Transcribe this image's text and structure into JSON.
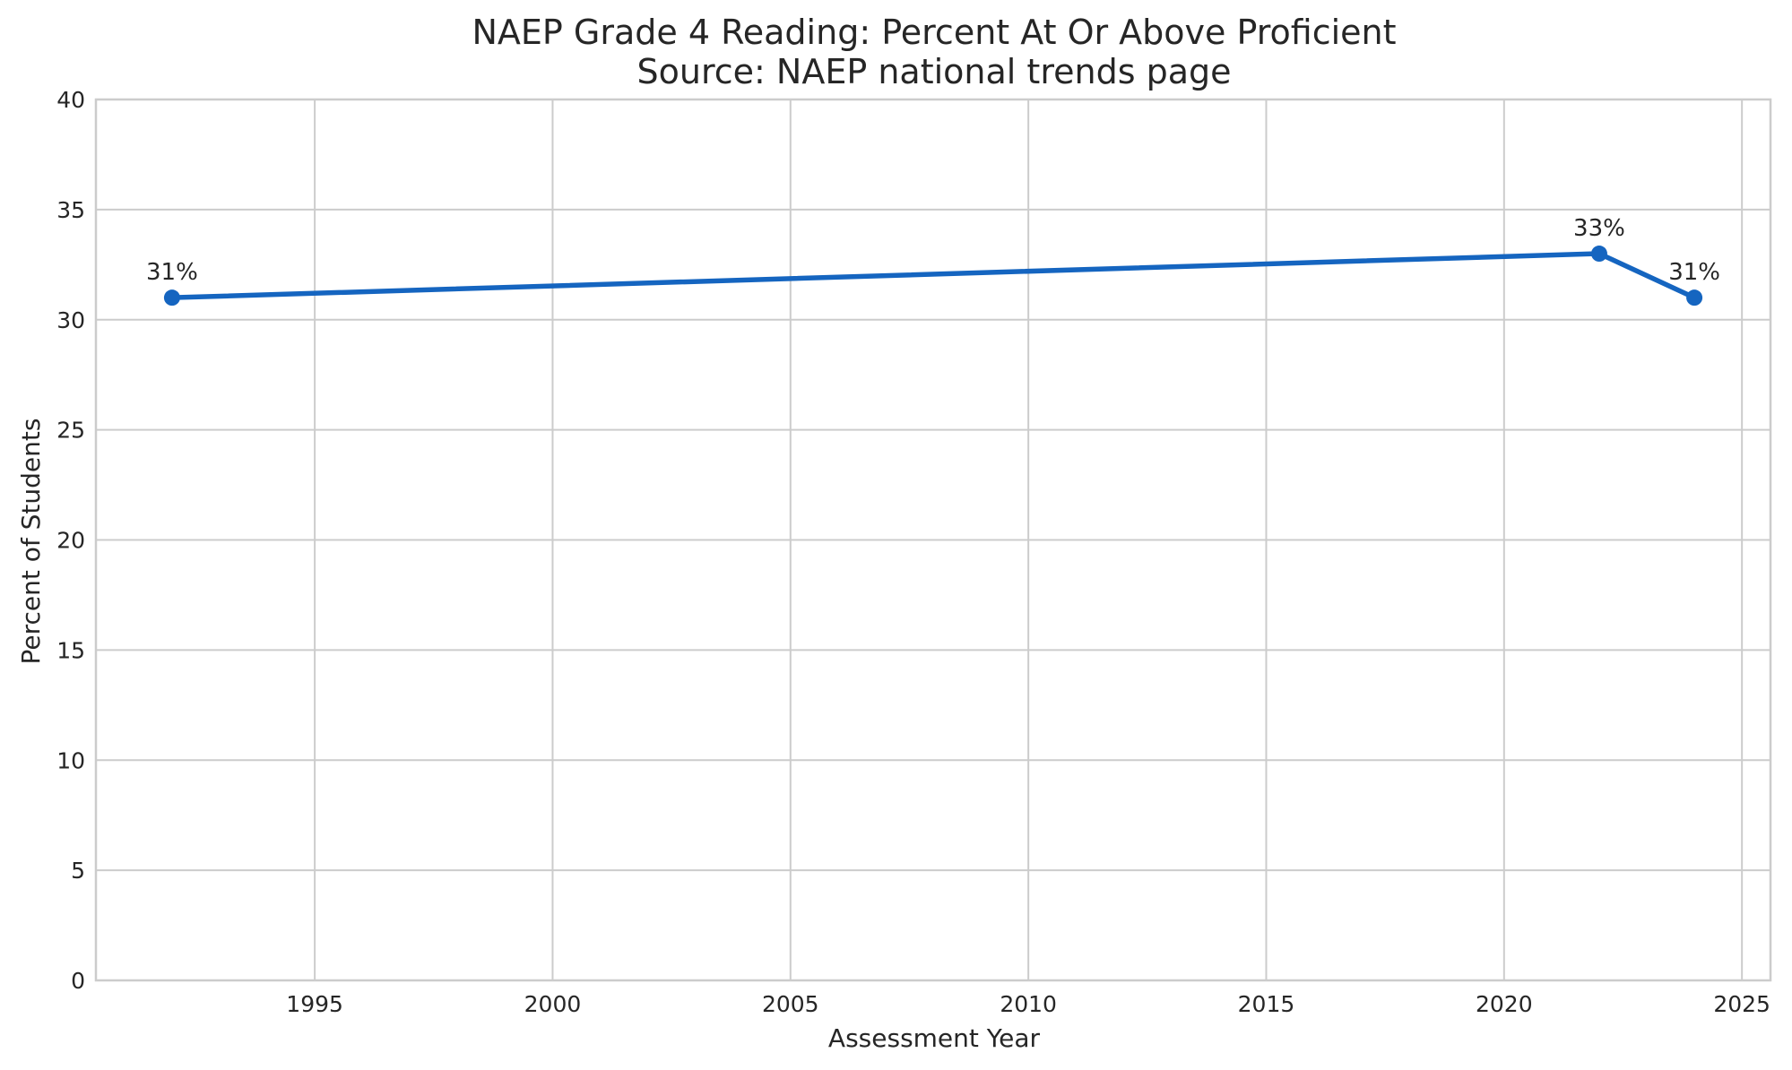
{
  "chart_data": {
    "type": "line",
    "title": "NAEP Grade 4 Reading: Percent At Or Above Proficient",
    "subtitle": "Source: NAEP national trends page",
    "xlabel": "Assessment Year",
    "ylabel": "Percent of Students",
    "xlim": [
      1990.4,
      2025.6
    ],
    "ylim": [
      0,
      40
    ],
    "x_ticks": [
      1995,
      2000,
      2005,
      2010,
      2015,
      2020,
      2025
    ],
    "y_ticks": [
      0,
      5,
      10,
      15,
      20,
      25,
      30,
      35,
      40
    ],
    "grid": true,
    "series": [
      {
        "x": [
          1992,
          2022,
          2024
        ],
        "values": [
          31,
          33,
          31
        ],
        "labels": [
          "31%",
          "33%",
          "31%"
        ],
        "color": "#1565c0"
      }
    ]
  }
}
